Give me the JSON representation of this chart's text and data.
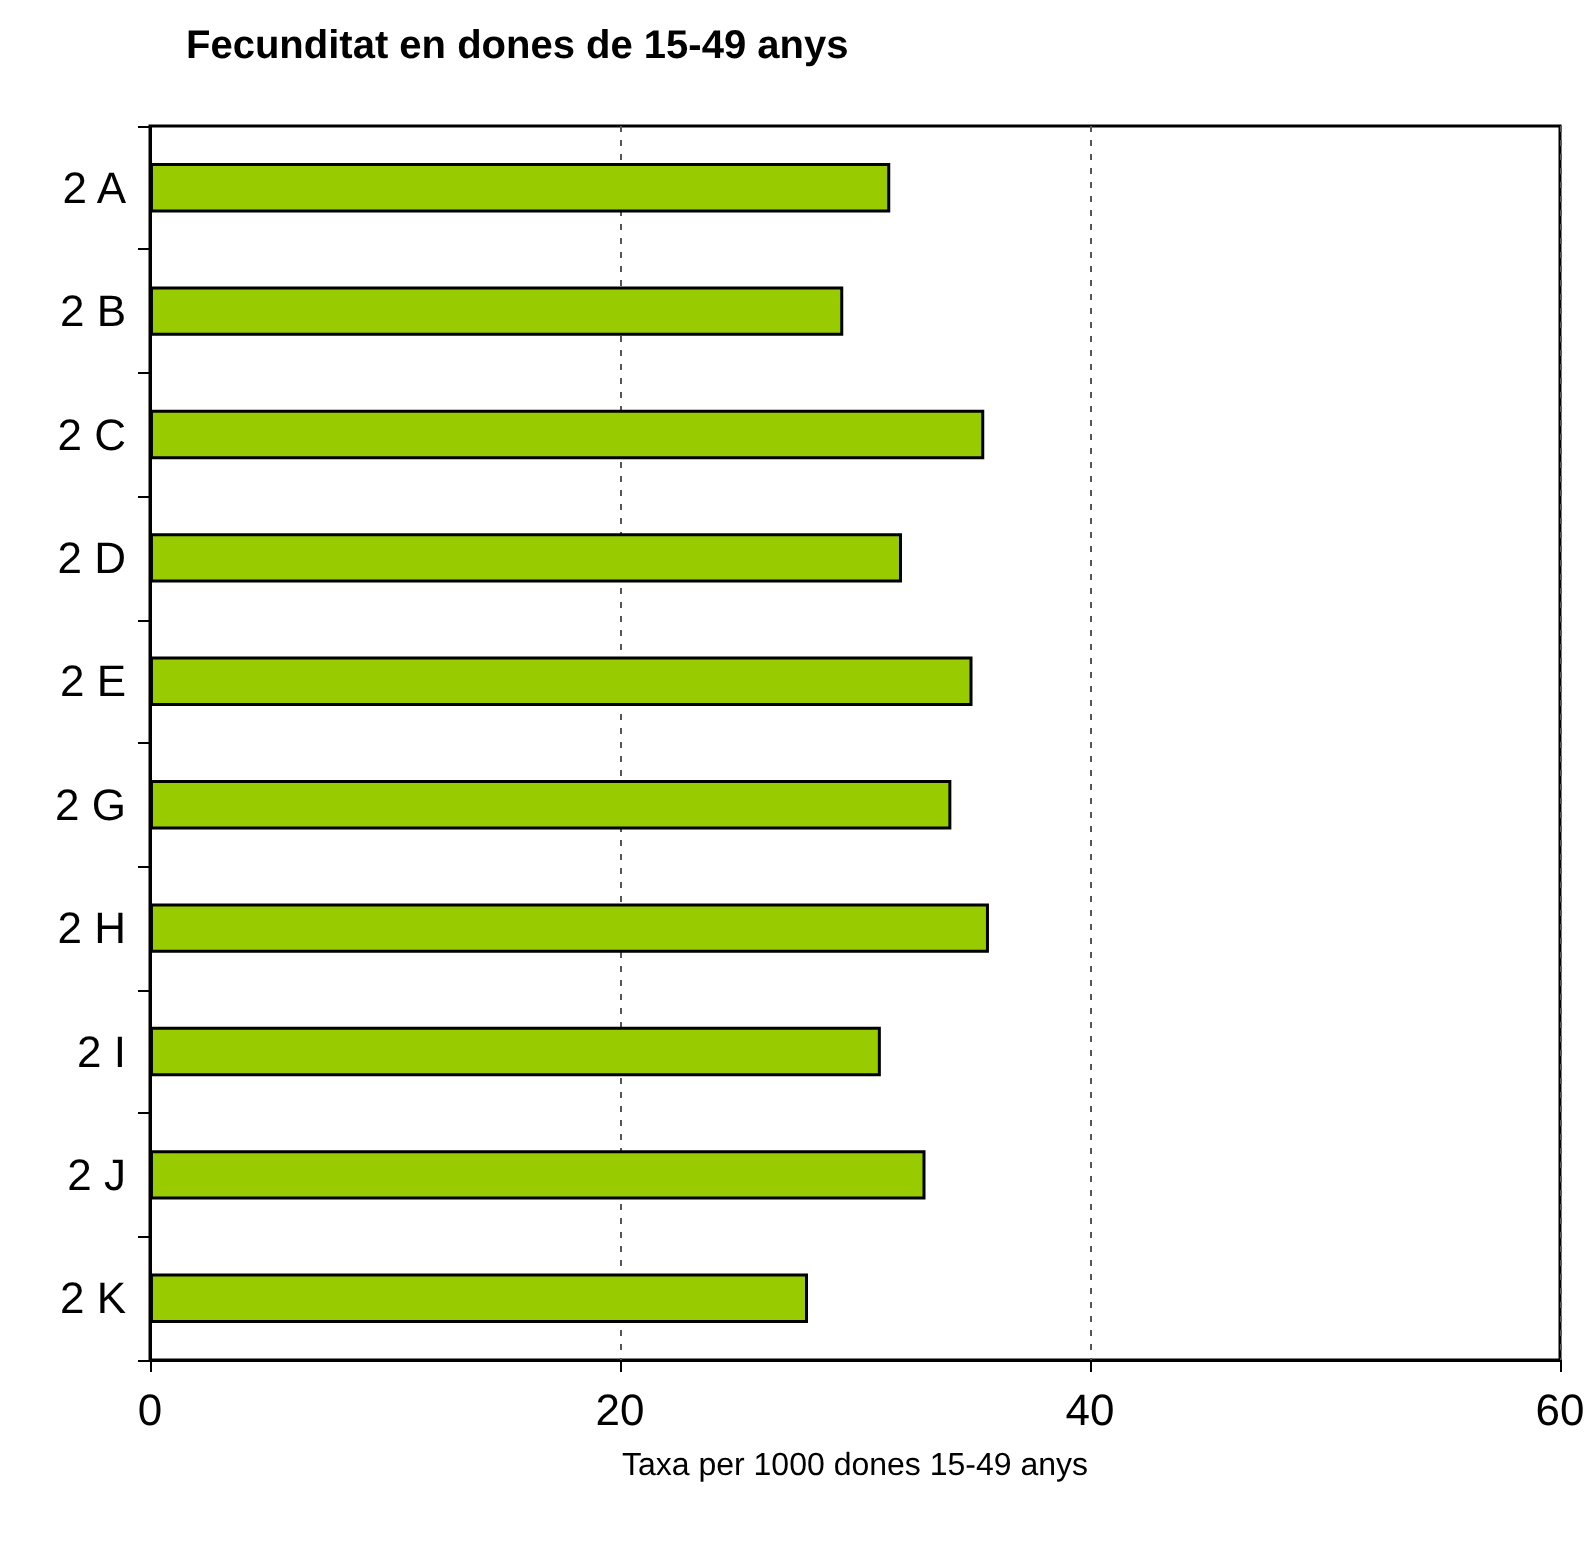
{
  "chart_data": {
    "type": "bar",
    "orientation": "horizontal",
    "title": "Fecunditat en dones de 15-49 anys",
    "xlabel": "Taxa per 1000 dones 15-49 anys",
    "categories": [
      "2 A",
      "2 B",
      "2 C",
      "2 D",
      "2 E",
      "2 G",
      "2 H",
      "2 I",
      "2 J",
      "2 K"
    ],
    "values": [
      31.5,
      29.5,
      35.5,
      32,
      35,
      34.1,
      35.7,
      31.1,
      33,
      28
    ],
    "color": "#99cc00",
    "xlim": [
      0,
      60
    ],
    "xticks": [
      0,
      20,
      40,
      60
    ],
    "grid": "x"
  }
}
